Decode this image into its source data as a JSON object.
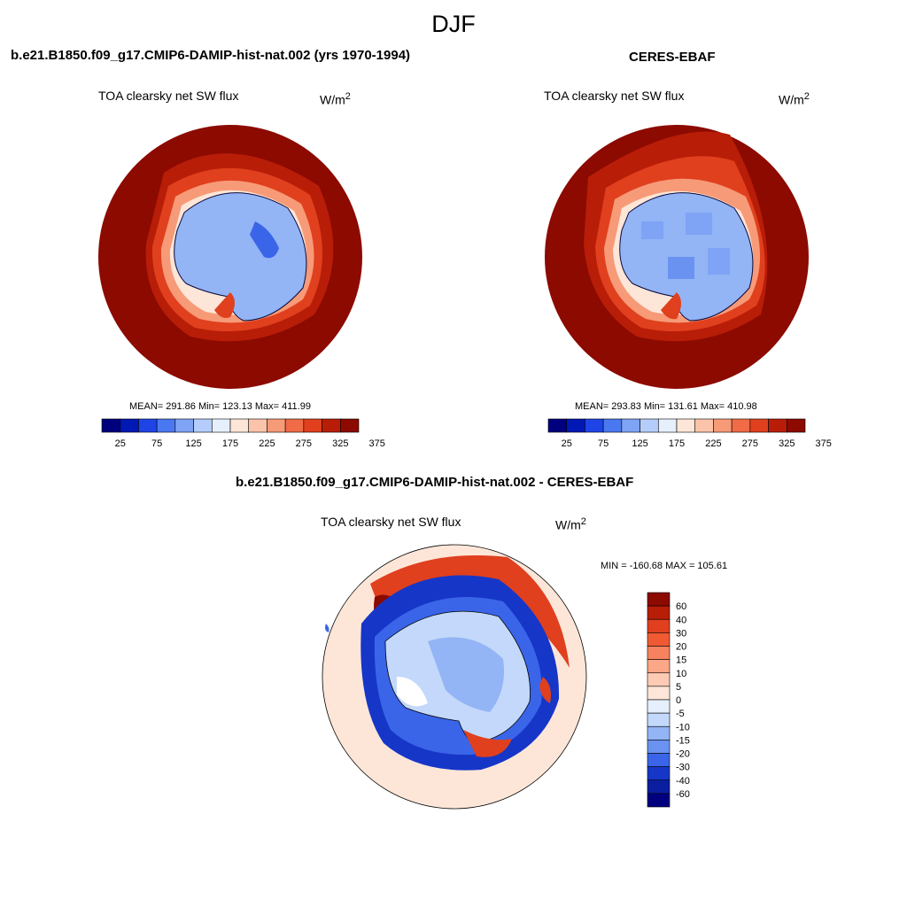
{
  "title": "DJF",
  "panels": [
    {
      "heading": "b.e21.B1850.f09_g17.CMIP6-DAMIP-hist-nat.002 (yrs 1970-1994)",
      "variable": "TOA clearsky net SW flux",
      "units": "W/m",
      "units_sup": "2",
      "stats": "MEAN= 291.86  Min= 123.13  Max= 411.99",
      "mean": 291.86,
      "min": 123.13,
      "max": 411.99
    },
    {
      "heading": "CERES-EBAF",
      "variable": "TOA clearsky net SW flux",
      "units": "W/m",
      "units_sup": "2",
      "stats": "MEAN= 293.83  Min= 131.61  Max= 410.98",
      "mean": 293.83,
      "min": 131.61,
      "max": 410.98
    }
  ],
  "diff_panel": {
    "heading": "b.e21.B1850.f09_g17.CMIP6-DAMIP-hist-nat.002 - CERES-EBAF",
    "variable": "TOA clearsky net SW flux",
    "units": "W/m",
    "units_sup": "2",
    "stats": "MIN = -160.68 MAX = 105.61",
    "min": -160.68,
    "max": 105.61
  },
  "colorbar_horizontal": {
    "labels": [
      "25",
      "75",
      "125",
      "175",
      "225",
      "275",
      "325",
      "375"
    ],
    "colors": [
      "#00007f",
      "#0018b4",
      "#1e44e6",
      "#4a78f0",
      "#7fa3f5",
      "#b4cdfa",
      "#e6f0fc",
      "#fde6d8",
      "#fbc4aa",
      "#f79a78",
      "#f06b46",
      "#e0401e",
      "#b81d08",
      "#8c0a00"
    ]
  },
  "colorbar_vertical": {
    "labels": [
      "60",
      "40",
      "30",
      "20",
      "15",
      "10",
      "5",
      "0",
      "-5",
      "-10",
      "-15",
      "-20",
      "-30",
      "-40",
      "-60"
    ],
    "colors": [
      "#8c0a00",
      "#b81d08",
      "#e0401e",
      "#f05a32",
      "#f7825f",
      "#fba788",
      "#fdcbb4",
      "#fde6d8",
      "#e6f0fc",
      "#c3d8fa",
      "#93b4f5",
      "#6a92f0",
      "#3a65e8",
      "#1636c8",
      "#0a1ea0",
      "#00007f"
    ]
  },
  "chart_data": {
    "type": "heatmap",
    "season": "DJF",
    "projection": "south polar stereographic",
    "variable": "TOA clearsky net SW flux",
    "units": "W/m2",
    "panels": [
      {
        "name": "b.e21.B1850.f09_g17.CMIP6-DAMIP-hist-nat.002 (yrs 1970-1994)",
        "mean": 291.86,
        "min": 123.13,
        "max": 411.99,
        "colorbar_levels": [
          25,
          75,
          125,
          175,
          225,
          275,
          325,
          375
        ]
      },
      {
        "name": "CERES-EBAF",
        "mean": 293.83,
        "min": 131.61,
        "max": 410.98,
        "colorbar_levels": [
          25,
          75,
          125,
          175,
          225,
          275,
          325,
          375
        ]
      },
      {
        "name": "b.e21.B1850.f09_g17.CMIP6-DAMIP-hist-nat.002 - CERES-EBAF",
        "min": -160.68,
        "max": 105.61,
        "colorbar_levels": [
          -60,
          -40,
          -30,
          -20,
          -15,
          -10,
          -5,
          0,
          5,
          10,
          15,
          20,
          30,
          40,
          60
        ]
      }
    ]
  }
}
